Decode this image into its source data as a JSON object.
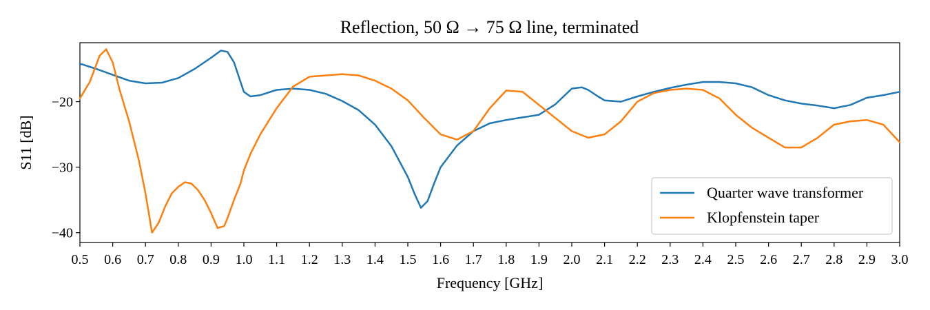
{
  "chart_data": {
    "type": "line",
    "title": "Reflection, 50 Ω → 75 Ω line, terminated",
    "xlabel": "Frequency [GHz]",
    "ylabel": "S11 [dB]",
    "xlim": [
      0.5,
      3.0
    ],
    "ylim": [
      -41.5,
      -11.0
    ],
    "x_ticks": [
      "0.5",
      "0.6",
      "0.7",
      "0.8",
      "0.9",
      "1.0",
      "1.1",
      "1.2",
      "1.3",
      "1.4",
      "1.5",
      "1.6",
      "1.7",
      "1.8",
      "1.9",
      "2.0",
      "2.1",
      "2.2",
      "2.3",
      "2.4",
      "2.5",
      "2.6",
      "2.7",
      "2.8",
      "2.9",
      "3.0"
    ],
    "y_ticks": [
      "−20",
      "−30",
      "−40"
    ],
    "grid": false,
    "legend_position": "bottom-right",
    "series": [
      {
        "name": "Quarter wave transformer",
        "color": "#1f77b4",
        "x": [
          0.5,
          0.55,
          0.6,
          0.65,
          0.7,
          0.75,
          0.8,
          0.85,
          0.9,
          0.93,
          0.95,
          0.97,
          0.99,
          1.0,
          1.02,
          1.05,
          1.1,
          1.15,
          1.2,
          1.25,
          1.3,
          1.35,
          1.4,
          1.45,
          1.5,
          1.52,
          1.54,
          1.56,
          1.58,
          1.6,
          1.65,
          1.7,
          1.75,
          1.8,
          1.85,
          1.9,
          1.95,
          2.0,
          2.03,
          2.05,
          2.08,
          2.1,
          2.15,
          2.2,
          2.25,
          2.3,
          2.35,
          2.4,
          2.45,
          2.5,
          2.55,
          2.6,
          2.65,
          2.7,
          2.75,
          2.8,
          2.85,
          2.9,
          2.95,
          3.0
        ],
        "y": [
          -14.2,
          -15.0,
          -15.9,
          -16.8,
          -17.2,
          -17.1,
          -16.4,
          -15.0,
          -13.3,
          -12.2,
          -12.4,
          -14.0,
          -17.0,
          -18.5,
          -19.2,
          -19.0,
          -18.2,
          -18.0,
          -18.2,
          -18.8,
          -19.9,
          -21.3,
          -23.5,
          -26.8,
          -31.5,
          -34.0,
          -36.2,
          -35.2,
          -32.5,
          -30.0,
          -26.7,
          -24.5,
          -23.3,
          -22.8,
          -22.4,
          -22.0,
          -20.4,
          -18.0,
          -17.8,
          -18.2,
          -19.2,
          -19.8,
          -20.0,
          -19.2,
          -18.5,
          -17.9,
          -17.4,
          -17.0,
          -17.0,
          -17.2,
          -17.8,
          -19.0,
          -19.8,
          -20.3,
          -20.6,
          -21.0,
          -20.5,
          -19.4,
          -19.0,
          -18.5
        ]
      },
      {
        "name": "Klopfenstein taper",
        "color": "#ff7f0e",
        "x": [
          0.5,
          0.53,
          0.56,
          0.58,
          0.6,
          0.62,
          0.65,
          0.68,
          0.7,
          0.72,
          0.74,
          0.76,
          0.78,
          0.8,
          0.82,
          0.84,
          0.86,
          0.88,
          0.9,
          0.92,
          0.94,
          0.95,
          0.97,
          0.99,
          1.0,
          1.02,
          1.05,
          1.1,
          1.15,
          1.2,
          1.25,
          1.3,
          1.35,
          1.4,
          1.45,
          1.5,
          1.55,
          1.6,
          1.65,
          1.7,
          1.75,
          1.8,
          1.85,
          1.9,
          1.95,
          2.0,
          2.05,
          2.1,
          2.15,
          2.2,
          2.25,
          2.3,
          2.35,
          2.4,
          2.45,
          2.5,
          2.55,
          2.6,
          2.65,
          2.7,
          2.75,
          2.8,
          2.85,
          2.9,
          2.95,
          3.0
        ],
        "y": [
          -19.5,
          -17.0,
          -13.0,
          -12.0,
          -14.0,
          -18.0,
          -23.0,
          -29.0,
          -34.0,
          -40.0,
          -38.5,
          -36.0,
          -34.0,
          -33.0,
          -32.3,
          -32.5,
          -33.5,
          -35.0,
          -37.0,
          -39.3,
          -39.0,
          -37.8,
          -35.0,
          -32.5,
          -30.5,
          -28.0,
          -25.0,
          -21.0,
          -17.7,
          -16.2,
          -16.0,
          -15.8,
          -16.0,
          -16.8,
          -18.0,
          -19.8,
          -22.5,
          -25.0,
          -25.8,
          -24.5,
          -21.0,
          -18.3,
          -18.5,
          -20.5,
          -22.5,
          -24.5,
          -25.5,
          -25.0,
          -23.0,
          -20.0,
          -18.7,
          -18.2,
          -18.0,
          -18.2,
          -19.5,
          -22.0,
          -24.0,
          -25.5,
          -27.0,
          -27.0,
          -25.5,
          -23.5,
          -23.0,
          -22.8,
          -23.5,
          -26.2
        ]
      }
    ]
  }
}
